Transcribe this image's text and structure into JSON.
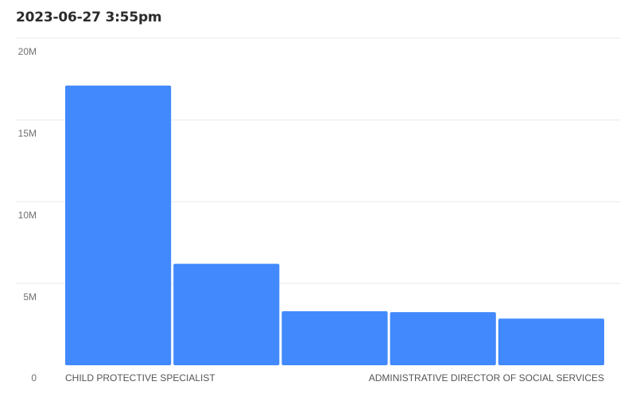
{
  "header": {
    "title": "2023-06-27 3:55pm"
  },
  "colors": {
    "bar": "#4189fd",
    "grid": "#e9e9e9",
    "axis_text": "#6f6f6f"
  },
  "chart_data": {
    "type": "bar",
    "title": "2023-06-27 3:55pm",
    "xlabel": "",
    "ylabel": "",
    "ylim": [
      0,
      20000000
    ],
    "y_ticks": [
      0,
      5000000,
      10000000,
      15000000,
      20000000
    ],
    "y_tick_labels": [
      "0",
      "5M",
      "10M",
      "15M",
      "20M"
    ],
    "grid": true,
    "categories": [
      "CHILD PROTECTIVE SPECIALIST",
      "",
      "",
      "",
      "ADMINISTRATIVE DIRECTOR OF SOCIAL SERVICES"
    ],
    "values": [
      17100000,
      6200000,
      3300000,
      3250000,
      2850000
    ]
  }
}
